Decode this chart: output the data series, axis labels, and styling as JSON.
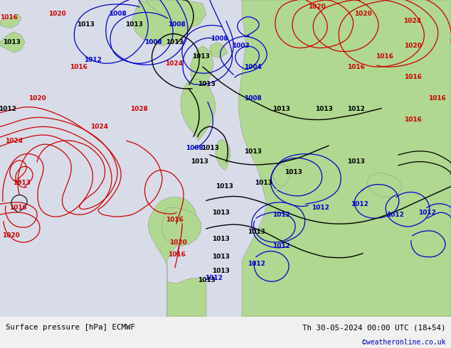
{
  "title_left": "Surface pressure [hPa] ECMWF",
  "title_right": "Th 30-05-2024 00:00 UTC (18+54)",
  "copyright": "©weatheronline.co.uk",
  "land_color": "#b0d890",
  "sea_color": "#d8dce8",
  "mountain_color": "#aaaaaa",
  "bottom_bar_color": "#f0f0ee",
  "text_color": "#000000",
  "copyright_color": "#0000cc",
  "fig_width": 6.34,
  "fig_height": 4.9,
  "dpi": 100,
  "red_color": "#cc0000",
  "blue_color": "#0000cc",
  "black_color": "#000000"
}
